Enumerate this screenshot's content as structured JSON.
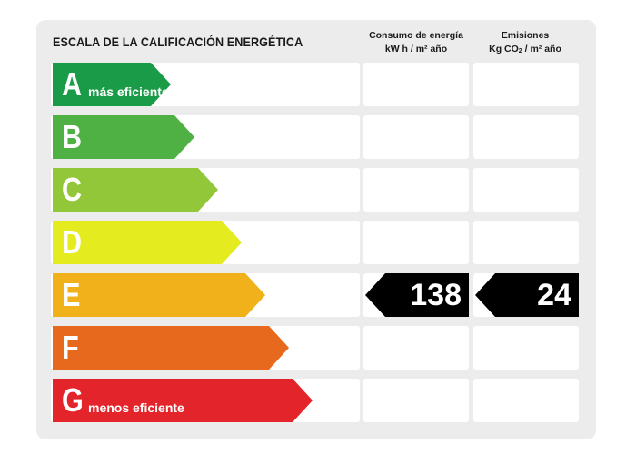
{
  "title": "ESCALA DE LA CALIFICACIÓN ENERGÉTICA",
  "columns": {
    "energy": {
      "line1": "Consumo de energía",
      "line2": "kW h / m² año"
    },
    "emissions": {
      "line1": "Emisiones",
      "line2_pre": "Kg CO",
      "line2_sub": "2",
      "line2_post": " / m² año"
    }
  },
  "ratings": [
    {
      "letter": "A",
      "label": "más eficiente",
      "color": "#1a9b47"
    },
    {
      "letter": "B",
      "label": "",
      "color": "#4fb144"
    },
    {
      "letter": "C",
      "label": "",
      "color": "#93c73a"
    },
    {
      "letter": "D",
      "label": "",
      "color": "#e4ec1f"
    },
    {
      "letter": "E",
      "label": "",
      "color": "#f0b11a"
    },
    {
      "letter": "F",
      "label": "",
      "color": "#e6691e"
    },
    {
      "letter": "G",
      "label": "menos eficiente",
      "color": "#e3242b"
    }
  ],
  "current_rating": "E",
  "energy_value": "138",
  "emissions_value": "24"
}
